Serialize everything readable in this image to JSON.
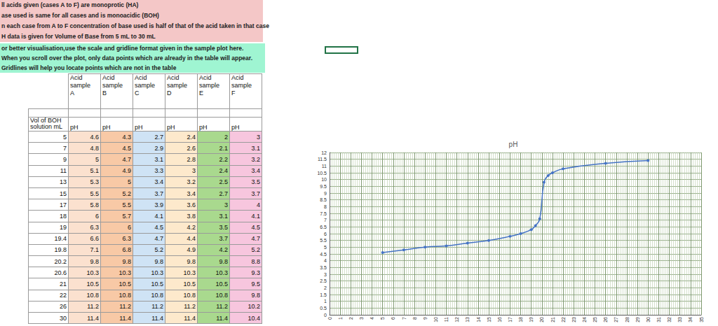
{
  "notes": [
    {
      "text": "ll acids given (cases A to F) are monoprotic (HA)",
      "color": "#f4c7c7"
    },
    {
      "text": "ase used is same for all cases and is monoacidic (BOH)",
      "color": "#f4c7c7"
    },
    {
      "text": "n each case from A to F concentration of base used is half of that of the acid taken in that case",
      "color": "#f4c7c7"
    },
    {
      "text": "H data is given for Volume of Base from 5 mL to 30 mL",
      "color": "#f4c7c7"
    },
    {
      "text": "or better visualisation,use the scale and gridline format given in the sample plot here.",
      "color": "#9ff5d2"
    },
    {
      "text": "When you scroll over the plot, only data points which are already in the table will appear.",
      "color": "#9ff5d2"
    },
    {
      "text": "Gridlines will help you locate  points which are not in the table",
      "color": "#9ff5d2"
    }
  ],
  "table": {
    "row_header": "Vol of BOH solution mL",
    "volumes": [
      5,
      7,
      9,
      11,
      13,
      15,
      17,
      18,
      19,
      19.4,
      19.8,
      20.2,
      20.6,
      21,
      22,
      26,
      30
    ],
    "columns": [
      {
        "header": "Acid sample A",
        "subheader": "pH",
        "color": "#fbe1cf",
        "values": [
          4.6,
          4.8,
          5,
          5.1,
          5.3,
          5.5,
          5.8,
          6,
          6.3,
          6.6,
          7.1,
          9.8,
          10.3,
          10.5,
          10.8,
          11.2,
          11.4
        ]
      },
      {
        "header": "Acid sample B",
        "subheader": "pH",
        "color": "#f8c9a6",
        "values": [
          4.3,
          4.5,
          4.7,
          4.9,
          5,
          5.2,
          5.5,
          5.7,
          6,
          6.3,
          6.8,
          9.8,
          10.3,
          10.5,
          10.8,
          11.2,
          11.4
        ]
      },
      {
        "header": "Acid sample C",
        "subheader": "pH",
        "color": "#cfe3f5",
        "values": [
          2.7,
          2.9,
          3.1,
          3.3,
          3.4,
          3.7,
          3.9,
          4.1,
          4.5,
          4.7,
          5.2,
          9.8,
          10.3,
          10.5,
          10.8,
          11.2,
          11.4
        ]
      },
      {
        "header": "Acid sample D",
        "subheader": "pH",
        "color": "#fde9cc",
        "values": [
          2.4,
          2.6,
          2.8,
          3,
          3.2,
          3.4,
          3.6,
          3.8,
          4.2,
          4.4,
          4.9,
          9.8,
          10.3,
          10.5,
          10.8,
          11.2,
          11.4
        ]
      },
      {
        "header": "Acid sample E",
        "subheader": "pH",
        "color": "#a9d98e",
        "values": [
          2,
          2.1,
          2.2,
          2.4,
          2.5,
          2.7,
          3,
          3.1,
          3.5,
          3.7,
          4.2,
          9.8,
          10.3,
          10.5,
          10.8,
          11.2,
          11.4
        ]
      },
      {
        "header": "Acid sample F",
        "subheader": "pH",
        "color": "#f7c6de",
        "values": [
          3,
          3.1,
          3.2,
          3.4,
          3.5,
          3.7,
          4,
          4.1,
          4.5,
          4.7,
          5.2,
          8.8,
          9.3,
          9.5,
          9.8,
          10.2,
          10.4
        ]
      }
    ]
  },
  "chart_data": {
    "type": "line",
    "title": "pH",
    "x": [
      5,
      7,
      9,
      11,
      13,
      15,
      17,
      18,
      19,
      19.4,
      19.8,
      20.2,
      20.6,
      21,
      22,
      26,
      30
    ],
    "values": [
      4.6,
      4.8,
      5,
      5.1,
      5.3,
      5.5,
      5.8,
      6,
      6.3,
      6.6,
      7.1,
      9.8,
      10.3,
      10.5,
      10.8,
      11.2,
      11.4
    ],
    "color": "#4472c4",
    "marker": "circle",
    "line_style": "smooth",
    "xlim": [
      0,
      35
    ],
    "xticks": [
      0,
      1,
      2,
      3,
      4,
      5,
      6,
      7,
      8,
      9,
      10,
      11,
      12,
      13,
      14,
      15,
      16,
      17,
      18,
      19,
      20,
      21,
      22,
      23,
      24,
      25,
      26,
      27,
      28,
      29,
      30,
      31,
      32,
      33,
      34,
      35
    ],
    "ylim": [
      0,
      12
    ],
    "yticks": [
      0,
      0.5,
      1,
      1.5,
      2,
      2.5,
      3,
      3.5,
      4,
      4.5,
      5,
      5.5,
      6,
      6.5,
      7,
      7.5,
      8,
      8.5,
      9,
      9.5,
      10,
      10.5,
      11,
      11.5,
      12
    ],
    "grid": true
  }
}
